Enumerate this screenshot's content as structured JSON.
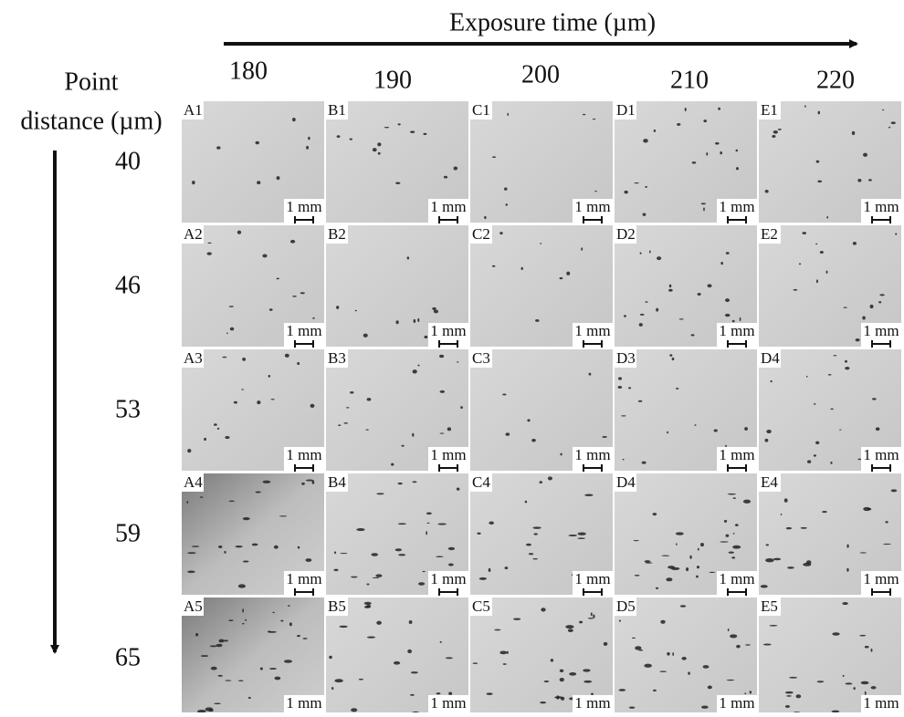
{
  "title": "Exposure time (µm)",
  "columns": [
    "180",
    "190",
    "200",
    "210",
    "220"
  ],
  "row_axis": {
    "line1": "Point",
    "line2": "distance (µm)"
  },
  "rows": [
    "40",
    "46",
    "53",
    "59",
    "65"
  ],
  "panels": [
    [
      {
        "label": "A1",
        "scale": "1 mm"
      },
      {
        "label": "B1",
        "scale": "1 mm"
      },
      {
        "label": "C1",
        "scale": "1 mm"
      },
      {
        "label": "D1",
        "scale": "1 mm"
      },
      {
        "label": "E1",
        "scale": "1 mm"
      }
    ],
    [
      {
        "label": "A2",
        "scale": "1 mm"
      },
      {
        "label": "B2",
        "scale": "1 mm"
      },
      {
        "label": "C2",
        "scale": "1 mm"
      },
      {
        "label": "D2",
        "scale": "1 mm"
      },
      {
        "label": "E2",
        "scale": "1 mm"
      }
    ],
    [
      {
        "label": "A3",
        "scale": "1 mm"
      },
      {
        "label": "B3",
        "scale": "1 mm"
      },
      {
        "label": "C3",
        "scale": "1 mm"
      },
      {
        "label": "D3",
        "scale": "1 mm"
      },
      {
        "label": "D4",
        "scale": "1 mm"
      }
    ],
    [
      {
        "label": "A4",
        "scale": "1 mm"
      },
      {
        "label": "B4",
        "scale": "1 mm"
      },
      {
        "label": "C4",
        "scale": "1 mm"
      },
      {
        "label": "D4",
        "scale": "1 mm"
      },
      {
        "label": "E4",
        "scale": "1 mm"
      }
    ],
    [
      {
        "label": "A5",
        "scale": "1 mm"
      },
      {
        "label": "B5",
        "scale": "1 mm"
      },
      {
        "label": "C5",
        "scale": "1 mm"
      },
      {
        "label": "D5",
        "scale": "1 mm"
      },
      {
        "label": "E5",
        "scale": "1 mm"
      }
    ]
  ]
}
